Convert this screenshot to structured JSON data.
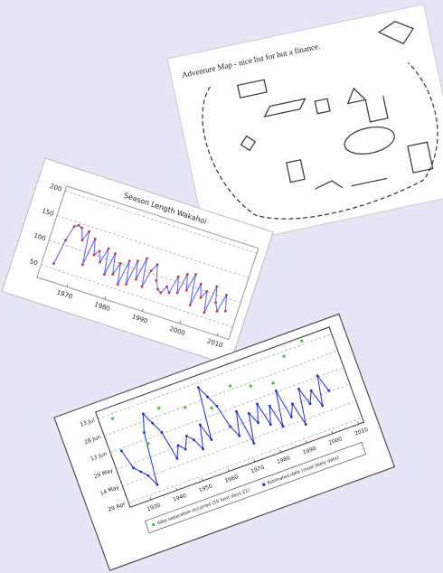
{
  "panels": [
    {
      "kind": "sketch",
      "title": "Adventure Map - nice list for but a finance."
    },
    {
      "kind": "chart",
      "chart_data": {
        "type": "line",
        "title": "Season Length Wakahoi",
        "x": [
          1965,
          1966,
          1967,
          1968,
          1969,
          1970,
          1971,
          1972,
          1973,
          1974,
          1975,
          1976,
          1977,
          1978,
          1979,
          1980,
          1981,
          1982,
          1983,
          1984,
          1985,
          1986,
          1987,
          1988,
          1989,
          1990,
          1991,
          1992,
          1993,
          1994,
          1995,
          1996,
          1997,
          1998,
          1999,
          2000,
          2001,
          2002,
          2003,
          2004,
          2005,
          2006,
          2007,
          2008,
          2009,
          2010
        ],
        "series": [
          {
            "color": "#5a5aff",
            "marker_color": "#cc3344",
            "values": [
              60,
              110,
              140,
              145,
              142,
              120,
              140,
              75,
              130,
              100,
              110,
              90,
              120,
              70,
              115,
              75,
              100,
              60,
              110,
              65,
              115,
              80,
              125,
              70,
              105,
              120,
              90,
              75,
              70,
              85,
              75,
              110,
              80,
              120,
              90,
              125,
              65,
              110,
              85,
              100,
              60,
              115,
              85,
              70,
              105,
              75
            ]
          }
        ],
        "xlim": [
          1962,
          2013
        ],
        "xticks": [
          1970,
          1980,
          1990,
          2000,
          2010
        ],
        "ylim": [
          25,
          210
        ],
        "yticks": [
          50,
          100,
          150,
          200
        ],
        "grid": true
      }
    },
    {
      "kind": "chart",
      "chart_data": {
        "type": "line",
        "x": [
          1926,
          1928,
          1930,
          1932,
          1934,
          1936,
          1938,
          1940,
          1942,
          1944,
          1946,
          1948,
          1950,
          1952,
          1954,
          1956,
          1958,
          1960,
          1962,
          1964,
          1966,
          1968,
          1970,
          1972,
          1974,
          1976,
          1978,
          1980,
          1982,
          1984,
          1986,
          1988,
          1990,
          1992,
          1994,
          1996,
          1998,
          2000,
          2002,
          2004
        ],
        "series": [
          {
            "name": "Estimated date (most likely date)",
            "color": "#1a2fd0",
            "values": [
              162,
              145,
              140,
              135,
              125,
              170,
              185,
              175,
              165,
              140,
              150,
              145,
              155,
              150,
              140,
              160,
              145,
              190,
              180,
              170,
              150,
              140,
              160,
              130,
              155,
              145,
              160,
              140,
              155,
              135,
              165,
              140,
              150,
              130,
              160,
              145,
              155,
              140,
              165,
              150
            ]
          },
          {
            "name": "date separation occurred (10 best days 21)",
            "color": "#33cc33",
            "points": true,
            "x": [
              1927,
              1936,
              1944,
              1953,
              1962,
              1971,
              1978,
              1986,
              1993,
              2001
            ],
            "values": [
              190,
              160,
              185,
              178,
              170,
              182,
              176,
              172,
              190,
              197
            ]
          }
        ],
        "xlim": [
          1922,
          2012
        ],
        "xticks": [
          1930,
          1940,
          1950,
          1960,
          1970,
          1980,
          1990,
          2000,
          2010
        ],
        "ylim": [
          115,
          200
        ],
        "yticks": [
          {
            "value": 119,
            "label": "29 Apr"
          },
          {
            "value": 134,
            "label": "14 May"
          },
          {
            "value": 149,
            "label": "29 May"
          },
          {
            "value": 164,
            "label": "13 Jun"
          },
          {
            "value": 179,
            "label": "28 Jun"
          },
          {
            "value": 194,
            "label": "13 Jul"
          }
        ],
        "grid": true
      }
    }
  ]
}
